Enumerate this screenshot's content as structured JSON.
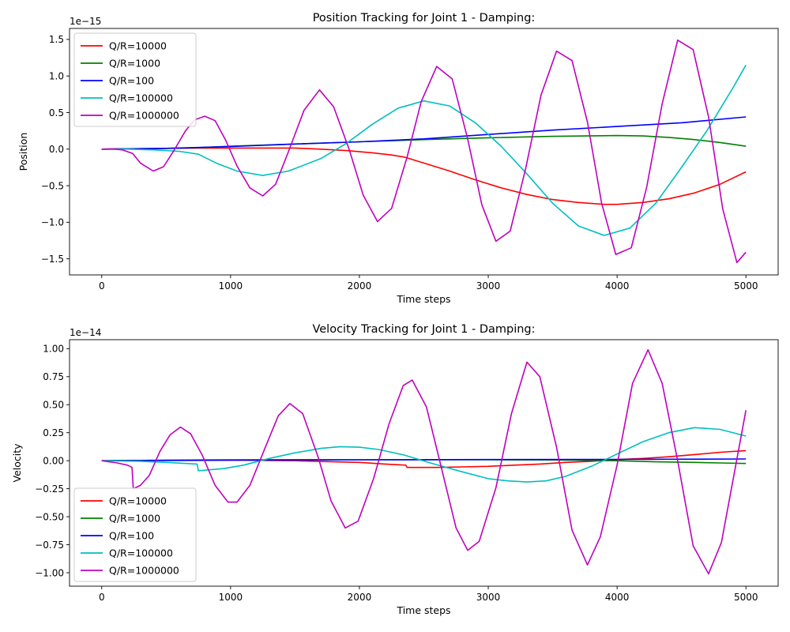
{
  "chart_data": [
    {
      "type": "line",
      "title": "Position Tracking for Joint 1 - Damping:",
      "xlabel": "Time steps",
      "ylabel": "Position",
      "y_scale_label": "1e−15",
      "xlim": [
        -250,
        5250
      ],
      "ylim": [
        -1.72,
        1.65
      ],
      "x_ticks": [
        0,
        1000,
        2000,
        3000,
        4000,
        5000
      ],
      "x_tick_labels": [
        "0",
        "1000",
        "2000",
        "3000",
        "4000",
        "5000"
      ],
      "y_ticks": [
        -1.5,
        -1.0,
        -0.5,
        0.0,
        0.5,
        1.0,
        1.5
      ],
      "y_tick_labels": [
        "−1.5",
        "−1.0",
        "−0.5",
        "0.0",
        "0.5",
        "1.0",
        "1.5"
      ],
      "legend_position": "upper-left",
      "series": [
        {
          "name": "Q/R=10000",
          "color": "#ff0000",
          "points": [
            [
              0,
              0
            ],
            [
              200,
              0.005
            ],
            [
              500,
              0.01
            ],
            [
              750,
              0.015
            ],
            [
              1000,
              0.015
            ],
            [
              1250,
              0.015
            ],
            [
              1500,
              0.015
            ],
            [
              1700,
              0.0
            ],
            [
              1900,
              -0.02
            ],
            [
              2100,
              -0.05
            ],
            [
              2250,
              -0.08
            ],
            [
              2350,
              -0.11
            ],
            [
              2500,
              -0.19
            ],
            [
              2700,
              -0.3
            ],
            [
              2900,
              -0.42
            ],
            [
              3100,
              -0.53
            ],
            [
              3300,
              -0.62
            ],
            [
              3500,
              -0.69
            ],
            [
              3700,
              -0.73
            ],
            [
              3900,
              -0.755
            ],
            [
              4000,
              -0.755
            ],
            [
              4200,
              -0.73
            ],
            [
              4400,
              -0.68
            ],
            [
              4600,
              -0.6
            ],
            [
              4800,
              -0.48
            ],
            [
              5000,
              -0.31
            ]
          ]
        },
        {
          "name": "Q/R=1000",
          "color": "#008000",
          "points": [
            [
              0,
              0
            ],
            [
              250,
              0.005
            ],
            [
              500,
              0.01
            ],
            [
              750,
              0.02
            ],
            [
              1000,
              0.04
            ],
            [
              1500,
              0.07
            ],
            [
              2000,
              0.1
            ],
            [
              2500,
              0.13
            ],
            [
              3000,
              0.155
            ],
            [
              3500,
              0.175
            ],
            [
              4000,
              0.185
            ],
            [
              4200,
              0.18
            ],
            [
              4400,
              0.16
            ],
            [
              4600,
              0.13
            ],
            [
              4800,
              0.09
            ],
            [
              5000,
              0.04
            ]
          ]
        },
        {
          "name": "Q/R=100",
          "color": "#0000ff",
          "points": [
            [
              0,
              0
            ],
            [
              500,
              0.01
            ],
            [
              1000,
              0.035
            ],
            [
              1500,
              0.07
            ],
            [
              2000,
              0.1
            ],
            [
              2500,
              0.14
            ],
            [
              3000,
              0.2
            ],
            [
              3500,
              0.26
            ],
            [
              4000,
              0.31
            ],
            [
              4500,
              0.36
            ],
            [
              5000,
              0.44
            ]
          ]
        },
        {
          "name": "Q/R=100000",
          "color": "#00bfbf",
          "points": [
            [
              0,
              0
            ],
            [
              200,
              0.0
            ],
            [
              400,
              -0.01
            ],
            [
              600,
              -0.03
            ],
            [
              750,
              -0.07
            ],
            [
              900,
              -0.2
            ],
            [
              1050,
              -0.3
            ],
            [
              1250,
              -0.36
            ],
            [
              1450,
              -0.3
            ],
            [
              1700,
              -0.13
            ],
            [
              1900,
              0.08
            ],
            [
              2100,
              0.34
            ],
            [
              2300,
              0.56
            ],
            [
              2500,
              0.66
            ],
            [
              2700,
              0.59
            ],
            [
              2900,
              0.36
            ],
            [
              3100,
              0.04
            ],
            [
              3300,
              -0.34
            ],
            [
              3500,
              -0.74
            ],
            [
              3700,
              -1.05
            ],
            [
              3900,
              -1.18
            ],
            [
              4100,
              -1.08
            ],
            [
              4300,
              -0.74
            ],
            [
              4500,
              -0.25
            ],
            [
              4700,
              0.26
            ],
            [
              4900,
              0.84
            ],
            [
              5000,
              1.15
            ]
          ]
        },
        {
          "name": "Q/R=1000000",
          "color": "#bf00bf",
          "points": [
            [
              0,
              0
            ],
            [
              100,
              0.0
            ],
            [
              160,
              -0.01
            ],
            [
              240,
              -0.06
            ],
            [
              300,
              -0.19
            ],
            [
              400,
              -0.3
            ],
            [
              480,
              -0.24
            ],
            [
              560,
              -0.02
            ],
            [
              650,
              0.25
            ],
            [
              720,
              0.4
            ],
            [
              800,
              0.45
            ],
            [
              880,
              0.39
            ],
            [
              960,
              0.13
            ],
            [
              1050,
              -0.23
            ],
            [
              1150,
              -0.53
            ],
            [
              1250,
              -0.64
            ],
            [
              1350,
              -0.48
            ],
            [
              1450,
              -0.03
            ],
            [
              1570,
              0.53
            ],
            [
              1690,
              0.81
            ],
            [
              1800,
              0.58
            ],
            [
              1920,
              0.0
            ],
            [
              2030,
              -0.63
            ],
            [
              2140,
              -0.99
            ],
            [
              2250,
              -0.81
            ],
            [
              2370,
              -0.11
            ],
            [
              2480,
              0.65
            ],
            [
              2600,
              1.13
            ],
            [
              2720,
              0.96
            ],
            [
              2840,
              0.14
            ],
            [
              2950,
              -0.76
            ],
            [
              3060,
              -1.26
            ],
            [
              3170,
              -1.12
            ],
            [
              3290,
              -0.27
            ],
            [
              3410,
              0.74
            ],
            [
              3530,
              1.34
            ],
            [
              3650,
              1.21
            ],
            [
              3770,
              0.37
            ],
            [
              3880,
              -0.74
            ],
            [
              3990,
              -1.44
            ],
            [
              4110,
              -1.35
            ],
            [
              4230,
              -0.52
            ],
            [
              4350,
              0.62
            ],
            [
              4470,
              1.49
            ],
            [
              4590,
              1.36
            ],
            [
              4710,
              0.44
            ],
            [
              4820,
              -0.82
            ],
            [
              4930,
              -1.55
            ],
            [
              5000,
              -1.41
            ]
          ]
        }
      ]
    },
    {
      "type": "line",
      "title": "Velocity Tracking for Joint 1 - Damping:",
      "xlabel": "Time steps",
      "ylabel": "Velocity",
      "y_scale_label": "1e−14",
      "xlim": [
        -250,
        5250
      ],
      "ylim": [
        -1.12,
        1.08
      ],
      "x_ticks": [
        0,
        1000,
        2000,
        3000,
        4000,
        5000
      ],
      "x_tick_labels": [
        "0",
        "1000",
        "2000",
        "3000",
        "4000",
        "5000"
      ],
      "y_ticks": [
        -1.0,
        -0.75,
        -0.5,
        -0.25,
        0.0,
        0.25,
        0.5,
        0.75,
        1.0
      ],
      "y_tick_labels": [
        "−1.00",
        "−0.75",
        "−0.50",
        "−0.25",
        "0.00",
        "0.25",
        "0.50",
        "0.75",
        "1.00"
      ],
      "legend_position": "lower-left",
      "series": [
        {
          "name": "Q/R=10000",
          "color": "#ff0000",
          "points": [
            [
              0,
              0
            ],
            [
              500,
              0.005
            ],
            [
              1000,
              0.005
            ],
            [
              1500,
              0.0
            ],
            [
              1800,
              -0.01
            ],
            [
              2000,
              -0.015
            ],
            [
              2200,
              -0.03
            ],
            [
              2360,
              -0.04
            ],
            [
              2370,
              -0.06
            ],
            [
              2600,
              -0.06
            ],
            [
              2800,
              -0.055
            ],
            [
              3000,
              -0.05
            ],
            [
              3200,
              -0.04
            ],
            [
              3400,
              -0.03
            ],
            [
              3600,
              -0.015
            ],
            [
              3800,
              -0.005
            ],
            [
              4000,
              0.01
            ],
            [
              4200,
              0.02
            ],
            [
              4400,
              0.035
            ],
            [
              4600,
              0.055
            ],
            [
              4800,
              0.075
            ],
            [
              5000,
              0.09
            ]
          ]
        },
        {
          "name": "Q/R=1000",
          "color": "#008000",
          "points": [
            [
              0,
              0
            ],
            [
              500,
              0.005
            ],
            [
              1000,
              0.008
            ],
            [
              1500,
              0.009
            ],
            [
              2000,
              0.008
            ],
            [
              2500,
              0.008
            ],
            [
              3000,
              0.008
            ],
            [
              3500,
              0.007
            ],
            [
              4000,
              0.0
            ],
            [
              4300,
              -0.01
            ],
            [
              4600,
              -0.015
            ],
            [
              4800,
              -0.02
            ],
            [
              5000,
              -0.025
            ]
          ]
        },
        {
          "name": "Q/R=100",
          "color": "#0000ff",
          "points": [
            [
              0,
              0
            ],
            [
              1000,
              0.005
            ],
            [
              2000,
              0.008
            ],
            [
              3000,
              0.01
            ],
            [
              4000,
              0.012
            ],
            [
              5000,
              0.015
            ]
          ]
        },
        {
          "name": "Q/R=100000",
          "color": "#00bfbf",
          "points": [
            [
              0,
              0
            ],
            [
              300,
              -0.005
            ],
            [
              500,
              -0.015
            ],
            [
              740,
              -0.03
            ],
            [
              750,
              -0.09
            ],
            [
              950,
              -0.07
            ],
            [
              1100,
              -0.04
            ],
            [
              1300,
              0.02
            ],
            [
              1500,
              0.07
            ],
            [
              1700,
              0.11
            ],
            [
              1850,
              0.125
            ],
            [
              2000,
              0.12
            ],
            [
              2150,
              0.1
            ],
            [
              2350,
              0.05
            ],
            [
              2550,
              -0.02
            ],
            [
              2800,
              -0.1
            ],
            [
              3000,
              -0.16
            ],
            [
              3150,
              -0.18
            ],
            [
              3300,
              -0.19
            ],
            [
              3450,
              -0.18
            ],
            [
              3600,
              -0.14
            ],
            [
              3800,
              -0.05
            ],
            [
              4000,
              0.06
            ],
            [
              4200,
              0.17
            ],
            [
              4400,
              0.25
            ],
            [
              4600,
              0.295
            ],
            [
              4800,
              0.28
            ],
            [
              5000,
              0.22
            ]
          ]
        },
        {
          "name": "Q/R=1000000",
          "color": "#bf00bf",
          "points": [
            [
              0,
              0
            ],
            [
              120,
              -0.02
            ],
            [
              200,
              -0.04
            ],
            [
              235,
              -0.06
            ],
            [
              245,
              -0.25
            ],
            [
              300,
              -0.22
            ],
            [
              370,
              -0.13
            ],
            [
              450,
              0.08
            ],
            [
              530,
              0.23
            ],
            [
              610,
              0.3
            ],
            [
              690,
              0.24
            ],
            [
              780,
              0.05
            ],
            [
              880,
              -0.22
            ],
            [
              980,
              -0.37
            ],
            [
              1050,
              -0.37
            ],
            [
              1150,
              -0.22
            ],
            [
              1270,
              0.12
            ],
            [
              1370,
              0.4
            ],
            [
              1460,
              0.51
            ],
            [
              1560,
              0.42
            ],
            [
              1680,
              0.03
            ],
            [
              1780,
              -0.36
            ],
            [
              1890,
              -0.6
            ],
            [
              1990,
              -0.54
            ],
            [
              2110,
              -0.16
            ],
            [
              2230,
              0.33
            ],
            [
              2340,
              0.67
            ],
            [
              2410,
              0.72
            ],
            [
              2520,
              0.48
            ],
            [
              2640,
              -0.08
            ],
            [
              2750,
              -0.6
            ],
            [
              2840,
              -0.8
            ],
            [
              2930,
              -0.72
            ],
            [
              3060,
              -0.24
            ],
            [
              3180,
              0.42
            ],
            [
              3300,
              0.88
            ],
            [
              3400,
              0.75
            ],
            [
              3530,
              0.12
            ],
            [
              3650,
              -0.62
            ],
            [
              3770,
              -0.93
            ],
            [
              3870,
              -0.68
            ],
            [
              4000,
              -0.04
            ],
            [
              4120,
              0.69
            ],
            [
              4240,
              0.99
            ],
            [
              4350,
              0.69
            ],
            [
              4470,
              0.0
            ],
            [
              4590,
              -0.76
            ],
            [
              4710,
              -1.01
            ],
            [
              4810,
              -0.73
            ],
            [
              4910,
              -0.11
            ],
            [
              5000,
              0.45
            ]
          ]
        }
      ]
    }
  ]
}
